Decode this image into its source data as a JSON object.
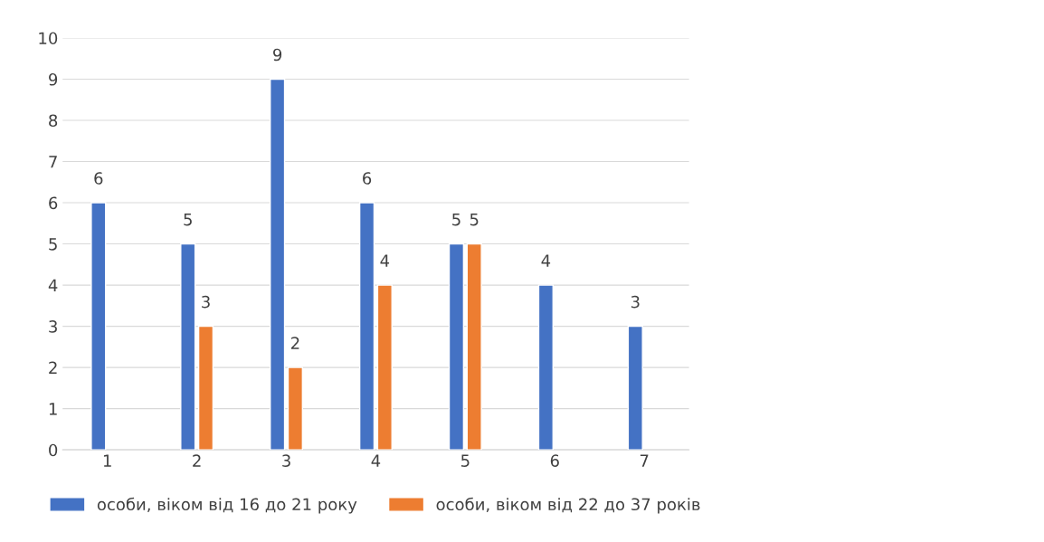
{
  "chart_data": {
    "type": "bar",
    "categories": [
      "1",
      "2",
      "3",
      "4",
      "5",
      "6",
      "7"
    ],
    "series": [
      {
        "name": "особи, віком від 16 до 21 року",
        "color": "#4472c4",
        "values": [
          6,
          5,
          9,
          6,
          5,
          4,
          3
        ]
      },
      {
        "name": "особи, віком від 22 до 37 років",
        "color": "#ed7d31",
        "values": [
          null,
          3,
          2,
          4,
          5,
          null,
          null
        ]
      }
    ],
    "ylim": [
      0,
      10
    ],
    "yticks": [
      0,
      1,
      2,
      3,
      4,
      5,
      6,
      7,
      8,
      9,
      10
    ],
    "grid": "y",
    "legend": "bottom",
    "data_labels": true
  }
}
